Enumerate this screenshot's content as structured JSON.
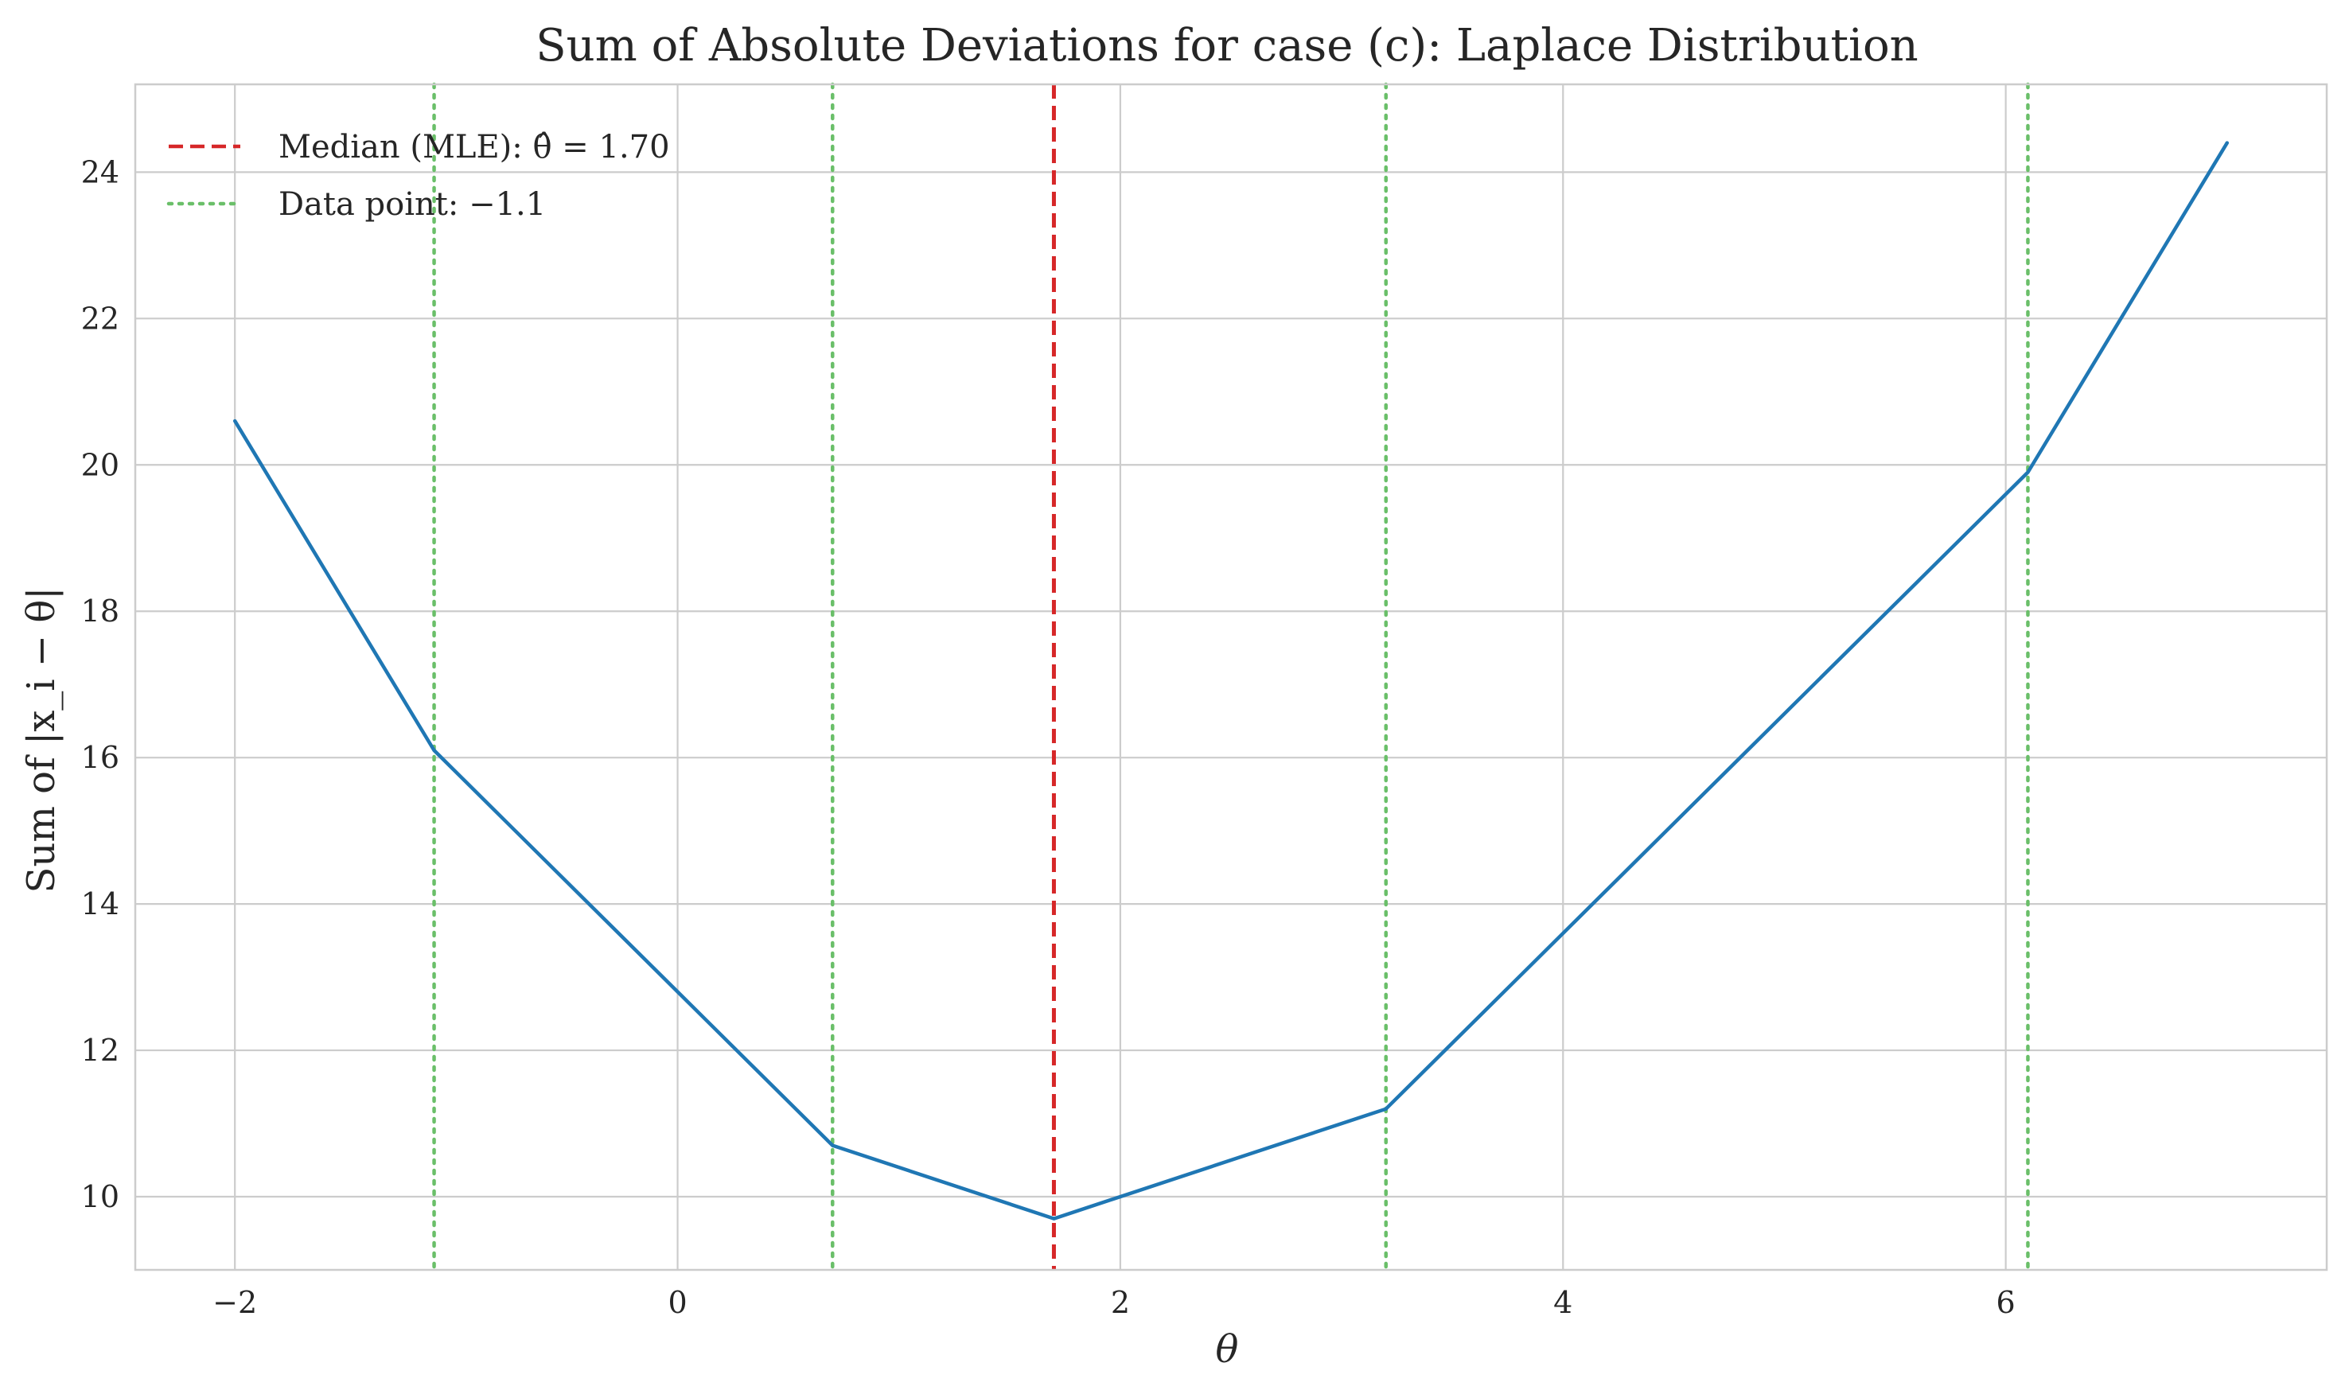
{
  "chart_data": {
    "type": "line",
    "title": "Sum of Absolute Deviations for case (c): Laplace Distribution",
    "xlabel": "θ",
    "ylabel": "Sum of |x_i − θ|",
    "xlim": [
      -2.45,
      7.45
    ],
    "ylim": [
      9.0,
      25.2
    ],
    "xticks": [
      -2,
      0,
      2,
      4,
      6
    ],
    "xtick_labels": [
      "−2",
      "0",
      "2",
      "4",
      "6"
    ],
    "yticks": [
      10,
      12,
      14,
      16,
      18,
      20,
      22,
      24
    ],
    "ytick_labels": [
      "10",
      "12",
      "14",
      "16",
      "18",
      "20",
      "22",
      "24"
    ],
    "grid": true,
    "legend_position": "top-left",
    "series": [
      {
        "kind": "curve",
        "color": "#1f77b4",
        "x": [
          -2.0,
          -1.1,
          0.7,
          1.7,
          3.2,
          6.1,
          7.0
        ],
        "y": [
          20.6,
          16.1,
          10.7,
          9.7,
          11.2,
          19.9,
          24.4
        ]
      }
    ],
    "vlines": [
      {
        "x": 1.7,
        "color": "#d62728",
        "style": "dashed",
        "role": "median"
      },
      {
        "x": -1.1,
        "color": "#6abf69",
        "style": "dotted",
        "role": "data"
      },
      {
        "x": 0.7,
        "color": "#6abf69",
        "style": "dotted",
        "role": "data"
      },
      {
        "x": 3.2,
        "color": "#6abf69",
        "style": "dotted",
        "role": "data"
      },
      {
        "x": 6.1,
        "color": "#6abf69",
        "style": "dotted",
        "role": "data"
      }
    ],
    "legend": [
      {
        "label": "Median (MLE): θ̂ = 1.70",
        "color": "#d62728",
        "style": "dashed"
      },
      {
        "label": "Data point: −1.1",
        "color": "#6abf69",
        "style": "dotted"
      }
    ]
  }
}
